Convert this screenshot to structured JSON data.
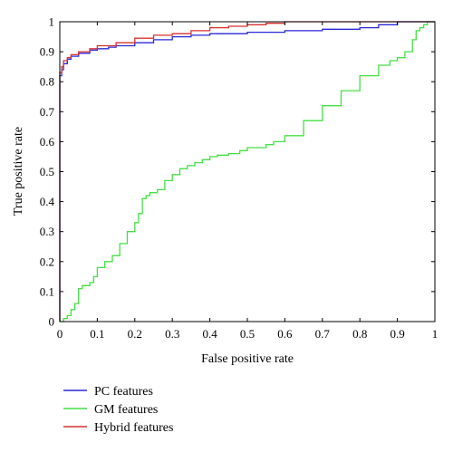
{
  "chart_data": {
    "type": "line",
    "title": "",
    "xlabel": "False positive rate",
    "ylabel": "True positive rate",
    "xlim": [
      0,
      1
    ],
    "ylim": [
      0,
      1
    ],
    "xticks": [
      "0",
      "0.1",
      "0.2",
      "0.3",
      "0.4",
      "0.5",
      "0.6",
      "0.7",
      "0.8",
      "0.9",
      "1"
    ],
    "yticks": [
      "0",
      "0.1",
      "0.2",
      "0.3",
      "0.4",
      "0.5",
      "0.6",
      "0.7",
      "0.8",
      "0.9",
      "1"
    ],
    "grid": false,
    "legend_position": "bottom-left, below plot",
    "series": [
      {
        "name": "PC features",
        "color": "#2a2ad8",
        "x": [
          0,
          0,
          0.005,
          0.01,
          0.02,
          0.03,
          0.05,
          0.08,
          0.1,
          0.13,
          0.15,
          0.2,
          0.25,
          0.3,
          0.35,
          0.4,
          0.5,
          0.6,
          0.7,
          0.8,
          0.85,
          0.9,
          1
        ],
        "y": [
          0,
          0.82,
          0.84,
          0.86,
          0.875,
          0.885,
          0.895,
          0.905,
          0.91,
          0.915,
          0.92,
          0.93,
          0.94,
          0.95,
          0.955,
          0.96,
          0.965,
          0.97,
          0.975,
          0.98,
          0.99,
          1,
          1
        ]
      },
      {
        "name": "GM features",
        "color": "#44e044",
        "x": [
          0,
          0.01,
          0.02,
          0.03,
          0.04,
          0.05,
          0.06,
          0.07,
          0.08,
          0.09,
          0.1,
          0.12,
          0.14,
          0.16,
          0.18,
          0.2,
          0.21,
          0.22,
          0.23,
          0.24,
          0.26,
          0.28,
          0.3,
          0.32,
          0.34,
          0.36,
          0.38,
          0.4,
          0.42,
          0.45,
          0.48,
          0.5,
          0.55,
          0.57,
          0.6,
          0.65,
          0.7,
          0.75,
          0.8,
          0.85,
          0.88,
          0.9,
          0.92,
          0.94,
          0.95,
          0.96,
          0.97,
          0.98,
          1
        ],
        "y": [
          0,
          0.01,
          0.02,
          0.04,
          0.06,
          0.11,
          0.12,
          0.12,
          0.13,
          0.15,
          0.18,
          0.2,
          0.22,
          0.26,
          0.3,
          0.33,
          0.36,
          0.41,
          0.42,
          0.43,
          0.44,
          0.47,
          0.49,
          0.51,
          0.52,
          0.53,
          0.54,
          0.55,
          0.555,
          0.56,
          0.57,
          0.58,
          0.59,
          0.6,
          0.62,
          0.67,
          0.72,
          0.77,
          0.82,
          0.855,
          0.87,
          0.88,
          0.9,
          0.94,
          0.97,
          0.98,
          0.99,
          1,
          1
        ]
      },
      {
        "name": "Hybrid features",
        "color": "#d83030",
        "x": [
          0,
          0,
          0.005,
          0.01,
          0.02,
          0.03,
          0.05,
          0.08,
          0.1,
          0.15,
          0.2,
          0.25,
          0.3,
          0.35,
          0.4,
          0.45,
          0.5,
          0.55,
          0.6,
          0.7,
          0.8,
          0.9,
          1
        ],
        "y": [
          0,
          0.83,
          0.85,
          0.87,
          0.88,
          0.89,
          0.9,
          0.91,
          0.92,
          0.93,
          0.945,
          0.955,
          0.96,
          0.97,
          0.98,
          0.985,
          0.99,
          0.995,
          1,
          1,
          1,
          1,
          1
        ]
      }
    ]
  }
}
